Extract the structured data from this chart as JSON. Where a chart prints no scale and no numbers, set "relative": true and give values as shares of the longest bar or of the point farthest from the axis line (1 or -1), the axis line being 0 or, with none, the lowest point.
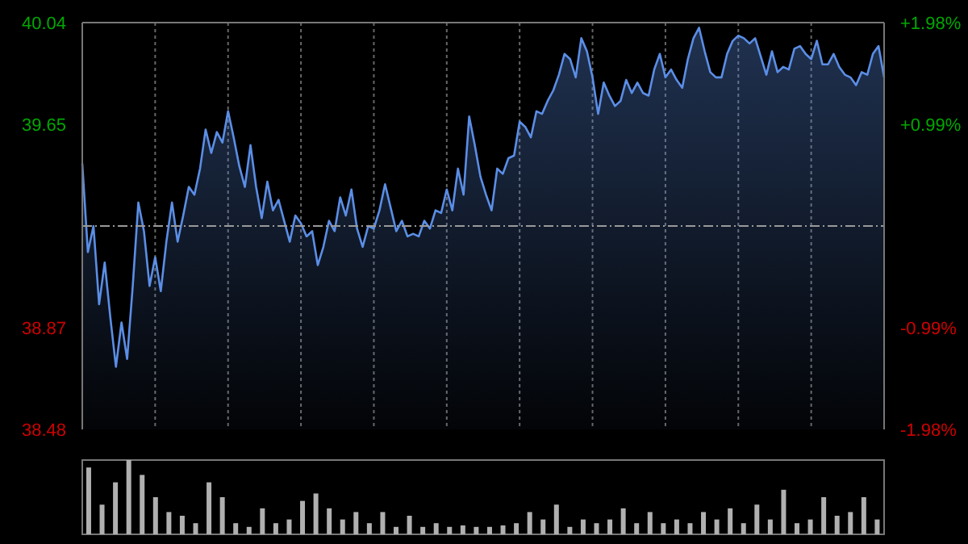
{
  "chart_data": [
    {
      "type": "area",
      "categories": [
        null,
        null,
        null,
        null,
        null,
        null,
        null,
        null,
        null,
        null,
        null,
        null,
        null,
        null,
        null,
        null,
        null,
        null,
        null,
        null,
        null,
        null,
        null,
        null,
        null,
        null,
        null,
        null,
        null,
        null,
        null,
        null,
        null,
        null,
        null,
        null,
        null,
        null,
        null,
        null,
        null,
        null,
        null,
        null,
        null,
        null,
        null,
        null,
        null,
        null,
        null,
        null,
        null,
        null,
        null,
        null,
        null,
        null,
        null,
        null,
        null,
        null,
        null,
        null,
        null,
        null,
        null,
        null,
        null,
        null,
        null,
        null,
        null,
        null,
        null,
        null,
        null,
        null,
        null,
        null,
        null,
        null,
        null,
        null,
        null,
        null,
        null,
        null,
        null,
        null,
        null,
        null,
        null,
        null,
        null,
        null,
        null,
        null,
        null,
        null,
        null,
        null,
        null,
        null,
        null,
        null,
        null,
        null,
        null,
        null,
        null,
        null,
        null,
        null,
        null,
        null,
        null,
        null,
        null,
        null,
        null,
        null,
        null,
        null,
        null,
        null,
        null,
        null,
        null,
        null,
        null,
        null,
        null,
        null,
        null,
        null,
        null,
        null,
        null,
        null,
        null,
        null,
        null,
        null
      ],
      "series": [
        {
          "color": "#5b8ee6",
          "values": [
            39.5,
            39.16,
            39.26,
            38.96,
            39.12,
            38.91,
            38.72,
            38.89,
            38.75,
            39.03,
            39.35,
            39.24,
            39.03,
            39.14,
            39.01,
            39.2,
            39.35,
            39.2,
            39.3,
            39.41,
            39.38,
            39.48,
            39.63,
            39.54,
            39.62,
            39.58,
            39.7,
            39.6,
            39.49,
            39.41,
            39.57,
            39.41,
            39.29,
            39.43,
            39.32,
            39.36,
            39.28,
            39.2,
            39.3,
            39.27,
            39.22,
            39.24,
            39.11,
            39.18,
            39.28,
            39.24,
            39.37,
            39.3,
            39.4,
            39.25,
            39.18,
            39.26,
            39.25,
            39.32,
            39.42,
            39.33,
            39.24,
            39.28,
            39.22,
            39.23,
            39.22,
            39.28,
            39.25,
            39.32,
            39.31,
            39.4,
            39.32,
            39.48,
            39.38,
            39.68,
            39.57,
            39.45,
            39.38,
            39.32,
            39.48,
            39.46,
            39.52,
            39.53,
            39.66,
            39.64,
            39.6,
            39.7,
            39.69,
            39.74,
            39.78,
            39.84,
            39.92,
            39.9,
            39.83,
            39.98,
            39.93,
            39.83,
            39.69,
            39.81,
            39.76,
            39.72,
            39.74,
            39.82,
            39.77,
            39.81,
            39.77,
            39.76,
            39.86,
            39.92,
            39.83,
            39.86,
            39.82,
            39.79,
            39.9,
            39.98,
            40.02,
            39.93,
            39.85,
            39.83,
            39.83,
            39.92,
            39.97,
            39.99,
            39.98,
            39.96,
            39.98,
            39.91,
            39.84,
            39.93,
            39.85,
            39.87,
            39.86,
            39.94,
            39.95,
            39.92,
            39.9,
            39.97,
            39.88,
            39.88,
            39.92,
            39.87,
            39.84,
            39.83,
            39.8,
            39.85,
            39.84,
            39.92,
            39.95,
            39.83
          ]
        }
      ],
      "ylim": [
        38.48,
        40.04
      ],
      "yticks": [
        40.04,
        39.65,
        38.87,
        38.48
      ],
      "y2lim": [
        -1.98,
        1.98
      ],
      "y2ticks": [
        {
          "value": 1.98,
          "label": "+1.98%"
        },
        {
          "value": 0.99,
          "label": "+0.99%"
        },
        {
          "value": -0.99,
          "label": "-0.99%"
        },
        {
          "value": -1.98,
          "label": "-1.98%"
        }
      ],
      "ref_lines": [
        {
          "axis": "y",
          "value": 39.26
        }
      ],
      "grid": true,
      "tick_labels": "y"
    },
    {
      "type": "bar",
      "relative": true,
      "color": "#b0b0b0",
      "categories": [
        null,
        null,
        null,
        null,
        null,
        null,
        null,
        null,
        null,
        null,
        null,
        null,
        null,
        null,
        null,
        null,
        null,
        null,
        null,
        null,
        null,
        null,
        null,
        null,
        null,
        null,
        null,
        null,
        null,
        null,
        null,
        null,
        null,
        null,
        null,
        null,
        null,
        null,
        null,
        null,
        null,
        null,
        null,
        null,
        null,
        null,
        null,
        null,
        null,
        null,
        null,
        null,
        null,
        null,
        null,
        null,
        null,
        null,
        null,
        null
      ],
      "values": [
        0.9,
        0.4,
        0.7,
        1,
        0.8,
        0.5,
        0.3,
        0.25,
        0.15,
        0.7,
        0.5,
        0.15,
        0.1,
        0.35,
        0.15,
        0.2,
        0.45,
        0.55,
        0.35,
        0.2,
        0.3,
        0.15,
        0.3,
        0.1,
        0.25,
        0.1,
        0.15,
        0.1,
        0.12,
        0.1,
        0.1,
        0.12,
        0.15,
        0.3,
        0.2,
        0.4,
        0.1,
        0.2,
        0.15,
        0.2,
        0.35,
        0.15,
        0.3,
        0.15,
        0.2,
        0.15,
        0.3,
        0.2,
        0.35,
        0.15,
        0.4,
        0.2,
        0.6,
        0.15,
        0.2,
        0.5,
        0.25,
        0.3,
        0.5,
        0.2
      ]
    }
  ]
}
